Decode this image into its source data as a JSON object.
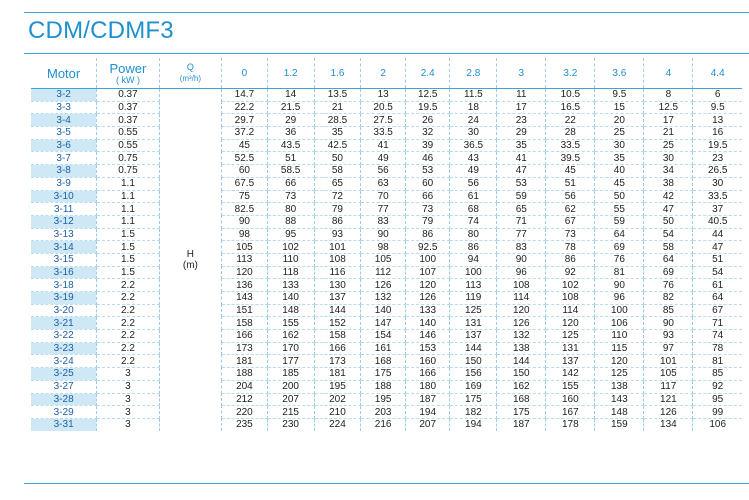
{
  "title": "CDM/CDMF3",
  "header": {
    "motor": "Motor",
    "power": "Power",
    "power_unit": "( kW )",
    "q": "Q",
    "q_unit": "(m³/h)",
    "flows": [
      "0",
      "1.2",
      "1.6",
      "2",
      "2.4",
      "2.8",
      "3",
      "3.2",
      "3.6",
      "4",
      "4.4"
    ]
  },
  "h_label": "H",
  "h_unit": "(m)",
  "rows": [
    {
      "model": "3-2",
      "power": "0.37",
      "h": [
        "14.7",
        "14",
        "13.5",
        "13",
        "12.5",
        "11.5",
        "11",
        "10.5",
        "9.5",
        "8",
        "6"
      ]
    },
    {
      "model": "3-3",
      "power": "0.37",
      "h": [
        "22.2",
        "21.5",
        "21",
        "20.5",
        "19.5",
        "18",
        "17",
        "16.5",
        "15",
        "12.5",
        "9.5"
      ]
    },
    {
      "model": "3-4",
      "power": "0.37",
      "h": [
        "29.7",
        "29",
        "28.5",
        "27.5",
        "26",
        "24",
        "23",
        "22",
        "20",
        "17",
        "13"
      ]
    },
    {
      "model": "3-5",
      "power": "0.55",
      "h": [
        "37.2",
        "36",
        "35",
        "33.5",
        "32",
        "30",
        "29",
        "28",
        "25",
        "21",
        "16"
      ]
    },
    {
      "model": "3-6",
      "power": "0.55",
      "h": [
        "45",
        "43.5",
        "42.5",
        "41",
        "39",
        "36.5",
        "35",
        "33.5",
        "30",
        "25",
        "19.5"
      ]
    },
    {
      "model": "3-7",
      "power": "0.75",
      "h": [
        "52.5",
        "51",
        "50",
        "49",
        "46",
        "43",
        "41",
        "39.5",
        "35",
        "30",
        "23"
      ]
    },
    {
      "model": "3-8",
      "power": "0.75",
      "h": [
        "60",
        "58.5",
        "58",
        "56",
        "53",
        "49",
        "47",
        "45",
        "40",
        "34",
        "26.5"
      ]
    },
    {
      "model": "3-9",
      "power": "1.1",
      "h": [
        "67.5",
        "66",
        "65",
        "63",
        "60",
        "56",
        "53",
        "51",
        "45",
        "38",
        "30"
      ]
    },
    {
      "model": "3-10",
      "power": "1.1",
      "h": [
        "75",
        "73",
        "72",
        "70",
        "66",
        "61",
        "59",
        "56",
        "50",
        "42",
        "33.5"
      ]
    },
    {
      "model": "3-11",
      "power": "1.1",
      "h": [
        "82.5",
        "80",
        "79",
        "77",
        "73",
        "68",
        "65",
        "62",
        "55",
        "47",
        "37"
      ]
    },
    {
      "model": "3-12",
      "power": "1.1",
      "h": [
        "90",
        "88",
        "86",
        "83",
        "79",
        "74",
        "71",
        "67",
        "59",
        "50",
        "40.5"
      ]
    },
    {
      "model": "3-13",
      "power": "1.5",
      "h": [
        "98",
        "95",
        "93",
        "90",
        "86",
        "80",
        "77",
        "73",
        "64",
        "54",
        "44"
      ]
    },
    {
      "model": "3-14",
      "power": "1.5",
      "h": [
        "105",
        "102",
        "101",
        "98",
        "92.5",
        "86",
        "83",
        "78",
        "69",
        "58",
        "47"
      ]
    },
    {
      "model": "3-15",
      "power": "1.5",
      "h": [
        "113",
        "110",
        "108",
        "105",
        "100",
        "94",
        "90",
        "86",
        "76",
        "64",
        "51"
      ]
    },
    {
      "model": "3-16",
      "power": "1.5",
      "h": [
        "120",
        "118",
        "116",
        "112",
        "107",
        "100",
        "96",
        "92",
        "81",
        "69",
        "54"
      ]
    },
    {
      "model": "3-18",
      "power": "2.2",
      "h": [
        "136",
        "133",
        "130",
        "126",
        "120",
        "113",
        "108",
        "102",
        "90",
        "76",
        "61"
      ]
    },
    {
      "model": "3-19",
      "power": "2.2",
      "h": [
        "143",
        "140",
        "137",
        "132",
        "126",
        "119",
        "114",
        "108",
        "96",
        "82",
        "64"
      ]
    },
    {
      "model": "3-20",
      "power": "2.2",
      "h": [
        "151",
        "148",
        "144",
        "140",
        "133",
        "125",
        "120",
        "114",
        "100",
        "85",
        "67"
      ]
    },
    {
      "model": "3-21",
      "power": "2.2",
      "h": [
        "158",
        "155",
        "152",
        "147",
        "140",
        "131",
        "126",
        "120",
        "106",
        "90",
        "71"
      ]
    },
    {
      "model": "3-22",
      "power": "2.2",
      "h": [
        "166",
        "162",
        "158",
        "154",
        "146",
        "137",
        "132",
        "125",
        "110",
        "93",
        "74"
      ]
    },
    {
      "model": "3-23",
      "power": "2.2",
      "h": [
        "173",
        "170",
        "166",
        "161",
        "153",
        "144",
        "138",
        "131",
        "115",
        "97",
        "78"
      ]
    },
    {
      "model": "3-24",
      "power": "2.2",
      "h": [
        "181",
        "177",
        "173",
        "168",
        "160",
        "150",
        "144",
        "137",
        "120",
        "101",
        "81"
      ]
    },
    {
      "model": "3-25",
      "power": "3",
      "h": [
        "188",
        "185",
        "181",
        "175",
        "166",
        "156",
        "150",
        "142",
        "125",
        "105",
        "85"
      ]
    },
    {
      "model": "3-27",
      "power": "3",
      "h": [
        "204",
        "200",
        "195",
        "188",
        "180",
        "169",
        "162",
        "155",
        "138",
        "117",
        "92"
      ]
    },
    {
      "model": "3-28",
      "power": "3",
      "h": [
        "212",
        "207",
        "202",
        "195",
        "187",
        "175",
        "168",
        "160",
        "143",
        "121",
        "95"
      ]
    },
    {
      "model": "3-29",
      "power": "3",
      "h": [
        "220",
        "215",
        "210",
        "203",
        "194",
        "182",
        "175",
        "167",
        "148",
        "126",
        "99"
      ]
    },
    {
      "model": "3-31",
      "power": "3",
      "h": [
        "235",
        "230",
        "224",
        "216",
        "207",
        "194",
        "187",
        "178",
        "159",
        "134",
        "106"
      ]
    }
  ]
}
